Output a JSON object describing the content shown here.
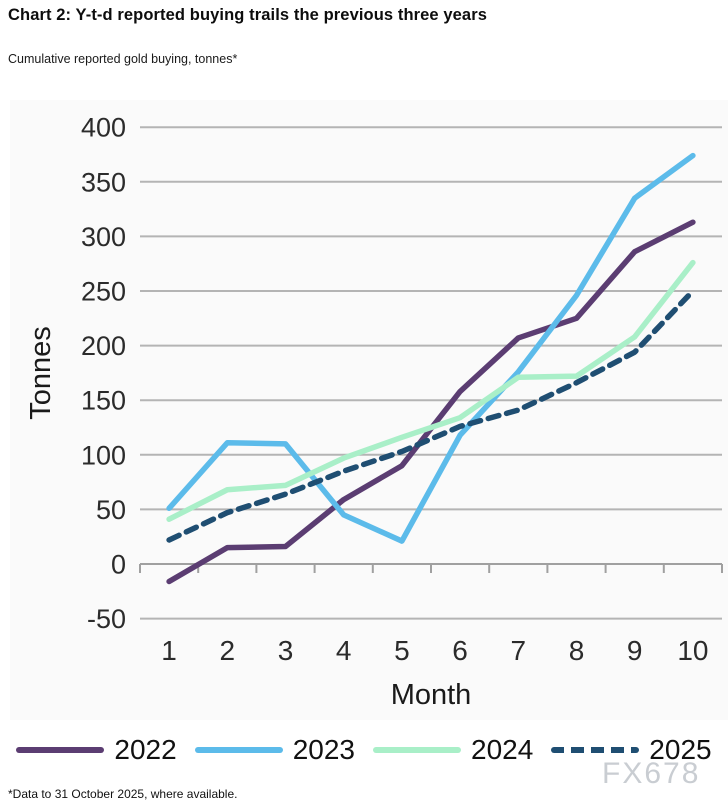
{
  "header": {
    "title": "Chart 2: Y-t-d reported buying trails the previous three years",
    "subtitle": "Cumulative reported gold buying, tonnes*"
  },
  "footnote": "*Data to 31 October 2025, where available.",
  "watermark": "FX678",
  "colors": {
    "series_2022": "#5b3d72",
    "series_2023": "#5cbbea",
    "series_2024": "#a9efc8",
    "series_2025": "#1f4e72",
    "gridline": "#b4b4b4",
    "axis": "#a0a0a0",
    "tick_text": "#2b2b2b",
    "axis_label_text": "#1a1a1a",
    "watermark_text": "#c9cdd2"
  },
  "chart_data": {
    "type": "line",
    "title": "Chart 2: Y-t-d reported buying trails the previous three years",
    "subtitle": "Cumulative reported gold buying, tonnes*",
    "xlabel": "Month",
    "ylabel": "Tonnes",
    "x": [
      1,
      2,
      3,
      4,
      5,
      6,
      7,
      8,
      9,
      10
    ],
    "ylim": [
      -50,
      400
    ],
    "ytick_step": 50,
    "grid": true,
    "legend_position": "bottom",
    "series": [
      {
        "name": "2022",
        "style": "solid",
        "color": "#5b3d72",
        "values": [
          -16,
          15,
          16,
          59,
          90,
          158,
          207,
          225,
          286,
          313
        ]
      },
      {
        "name": "2023",
        "style": "solid",
        "color": "#5cbbea",
        "values": [
          51,
          111,
          110,
          45,
          21,
          118,
          176,
          246,
          335,
          374
        ]
      },
      {
        "name": "2024",
        "style": "solid",
        "color": "#a9efc8",
        "values": [
          41,
          68,
          72,
          97,
          116,
          134,
          171,
          172,
          208,
          276
        ]
      },
      {
        "name": "2025",
        "style": "dashed",
        "color": "#1f4e72",
        "values": [
          22,
          47,
          64,
          85,
          103,
          126,
          141,
          166,
          194,
          250
        ]
      }
    ]
  }
}
